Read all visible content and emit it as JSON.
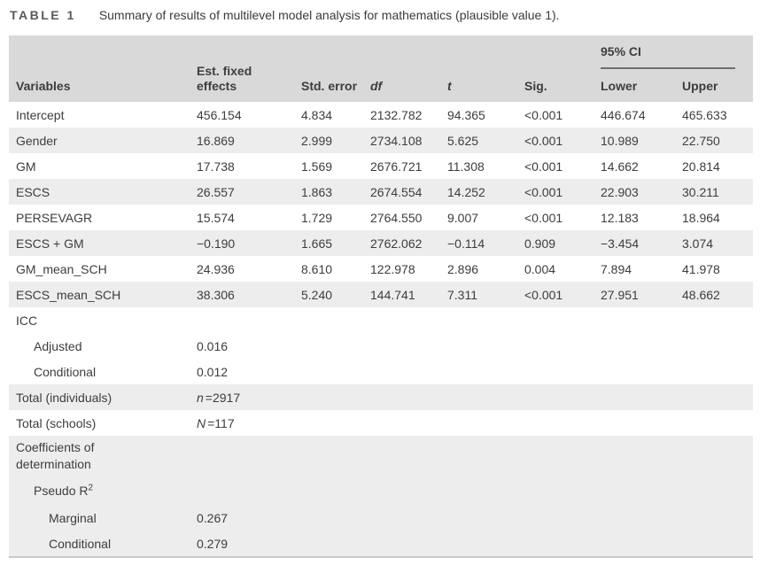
{
  "title": {
    "tag": "TABLE 1",
    "caption": "Summary of results of multilevel model analysis for mathematics (plausible value 1)."
  },
  "colors": {
    "header_bg": "#d9d9d9",
    "stripe_bg": "#ededed",
    "text": "#3d3d3d",
    "ci_rule": "#6f6f6f",
    "bottom_rule": "#c9c9c9"
  },
  "table": {
    "header": {
      "variables": "Variables",
      "est": "Est. fixed effects",
      "std": "Std. error",
      "df": "df",
      "t": "t",
      "sig": "Sig.",
      "ci": "95% CI",
      "lower": "Lower",
      "upper": "Upper"
    },
    "rows": [
      {
        "label": "Intercept",
        "est": "456.154",
        "std": "4.834",
        "df": "2132.782",
        "t": "94.365",
        "sig": "<0.001",
        "lower": "446.674",
        "upper": "465.633"
      },
      {
        "label": "Gender",
        "est": "16.869",
        "std": "2.999",
        "df": "2734.108",
        "t": "5.625",
        "sig": "<0.001",
        "lower": "10.989",
        "upper": "22.750"
      },
      {
        "label": "GM",
        "est": "17.738",
        "std": "1.569",
        "df": "2676.721",
        "t": "11.308",
        "sig": "<0.001",
        "lower": "14.662",
        "upper": "20.814"
      },
      {
        "label": "ESCS",
        "est": "26.557",
        "std": "1.863",
        "df": "2674.554",
        "t": "14.252",
        "sig": "<0.001",
        "lower": "22.903",
        "upper": "30.211"
      },
      {
        "label": "PERSEVAGR",
        "est": "15.574",
        "std": "1.729",
        "df": "2764.550",
        "t": "9.007",
        "sig": "<0.001",
        "lower": "12.183",
        "upper": "18.964"
      },
      {
        "label": "ESCS + GM",
        "est": "−0.190",
        "std": "1.665",
        "df": "2762.062",
        "t": "−0.114",
        "sig": "0.909",
        "lower": "−3.454",
        "upper": "3.074"
      },
      {
        "label": "GM_mean_SCH",
        "est": "24.936",
        "std": "8.610",
        "df": "122.978",
        "t": "2.896",
        "sig": "0.004",
        "lower": "7.894",
        "upper": "41.978"
      },
      {
        "label": "ESCS_mean_SCH",
        "est": "38.306",
        "std": "5.240",
        "df": "144.741",
        "t": "7.311",
        "sig": "<0.001",
        "lower": "27.951",
        "upper": "48.662"
      },
      {
        "label": "ICC"
      },
      {
        "label": "Adjusted",
        "est": "0.016"
      },
      {
        "label": "Conditional",
        "est": "0.012"
      },
      {
        "label": "Total (individuals)",
        "est_it": "n",
        "est_rest": "=2917"
      },
      {
        "label": "Total (schools)",
        "est_it": "N",
        "est_rest": "=117"
      },
      {
        "label": "Coefficients of determination"
      },
      {
        "label": "Pseudo R",
        "label_sup": "2"
      },
      {
        "label": "Marginal",
        "est": "0.267"
      },
      {
        "label": "Conditional",
        "est": "0.279"
      }
    ]
  }
}
